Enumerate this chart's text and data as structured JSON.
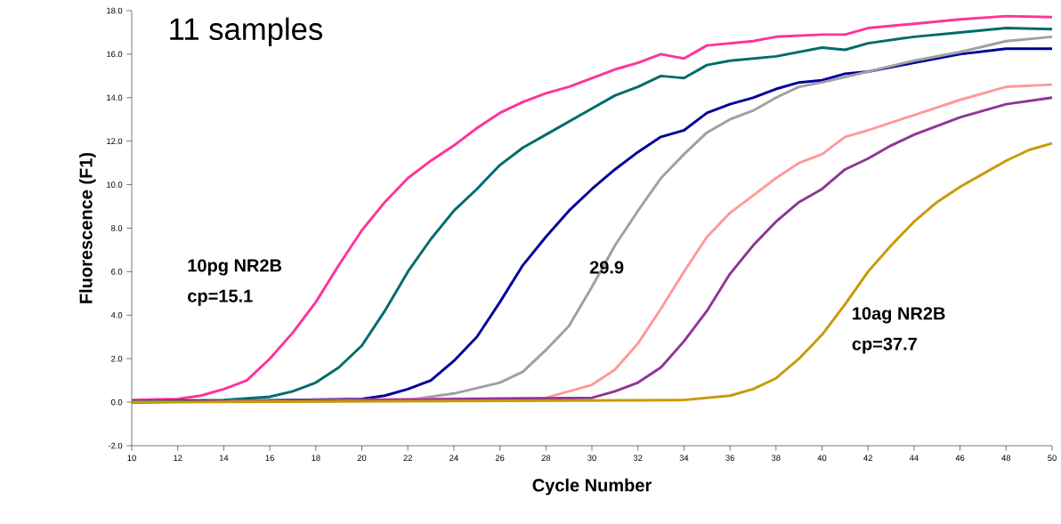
{
  "chart_data": {
    "type": "line",
    "title": "11 samples",
    "xlabel": "Cycle Number",
    "ylabel": "Fluorescence (F1)",
    "xlim": [
      10,
      50
    ],
    "ylim": [
      -2,
      18
    ],
    "xticks": [
      10,
      12,
      14,
      16,
      18,
      20,
      22,
      24,
      26,
      28,
      30,
      32,
      34,
      36,
      38,
      40,
      42,
      44,
      46,
      48,
      50
    ],
    "yticks": [
      {
        "value": -2,
        "label": "-2.0"
      },
      {
        "value": 0,
        "label": "0.0"
      },
      {
        "value": 2,
        "label": "2.0"
      },
      {
        "value": 4,
        "label": "4.0"
      },
      {
        "value": 6,
        "label": "6.0"
      },
      {
        "value": 8,
        "label": "8.0"
      },
      {
        "value": 10,
        "label": "10.0"
      },
      {
        "value": 12,
        "label": "12.0"
      },
      {
        "value": 14,
        "label": "14.0"
      },
      {
        "value": 16,
        "label": "16.0"
      },
      {
        "value": 18,
        "label": "18.0"
      }
    ],
    "marker": "none",
    "line_style": "solid",
    "annotations": [
      "10pg NR2B",
      "cp=15.1",
      "29.9",
      "10ag NR2B",
      "cp=37.7"
    ],
    "series": [
      {
        "color": "#ff3399",
        "x": [
          10,
          12,
          13,
          14,
          15,
          16,
          17,
          18,
          19,
          20,
          21,
          22,
          23,
          24,
          25,
          26,
          27,
          28,
          29,
          30,
          31,
          32,
          33,
          34,
          35,
          36,
          37,
          38,
          40,
          41,
          42,
          44,
          46,
          48,
          50
        ],
        "values": [
          0.1,
          0.15,
          0.3,
          0.6,
          1.0,
          2.0,
          3.2,
          4.6,
          6.3,
          7.9,
          9.2,
          10.3,
          11.1,
          11.8,
          12.6,
          13.3,
          13.8,
          14.2,
          14.5,
          14.9,
          15.3,
          15.6,
          16.0,
          15.8,
          16.4,
          16.5,
          16.6,
          16.8,
          16.9,
          16.9,
          17.2,
          17.4,
          17.6,
          17.75,
          17.7
        ]
      },
      {
        "color": "#006b6b",
        "x": [
          10,
          14,
          16,
          17,
          18,
          19,
          20,
          21,
          22,
          23,
          24,
          25,
          26,
          27,
          28,
          29,
          30,
          31,
          32,
          33,
          34,
          35,
          36,
          38,
          40,
          41,
          42,
          44,
          46,
          48,
          50
        ],
        "values": [
          0.05,
          0.1,
          0.25,
          0.5,
          0.9,
          1.6,
          2.6,
          4.2,
          6.0,
          7.5,
          8.8,
          9.8,
          10.9,
          11.7,
          12.3,
          12.9,
          13.5,
          14.1,
          14.5,
          15.0,
          14.9,
          15.5,
          15.7,
          15.9,
          16.3,
          16.2,
          16.5,
          16.8,
          17.0,
          17.2,
          17.15
        ]
      },
      {
        "color": "#000099",
        "x": [
          10,
          20,
          21,
          22,
          23,
          24,
          25,
          26,
          27,
          28,
          29,
          30,
          31,
          32,
          33,
          34,
          35,
          36,
          37,
          38,
          39,
          40,
          41,
          42,
          44,
          46,
          48,
          50
        ],
        "values": [
          0,
          0.15,
          0.3,
          0.6,
          1.0,
          1.9,
          3.0,
          4.6,
          6.3,
          7.6,
          8.8,
          9.8,
          10.7,
          11.5,
          12.2,
          12.5,
          13.3,
          13.7,
          14.0,
          14.4,
          14.7,
          14.8,
          15.1,
          15.2,
          15.6,
          16.0,
          16.25,
          16.25
        ]
      },
      {
        "color": "#a0a0a0",
        "x": [
          10,
          22,
          24,
          26,
          27,
          28,
          29,
          30,
          31,
          32,
          33,
          34,
          35,
          36,
          37,
          38,
          39,
          40,
          42,
          44,
          46,
          48,
          50
        ],
        "values": [
          0,
          0.1,
          0.4,
          0.9,
          1.4,
          2.4,
          3.5,
          5.3,
          7.2,
          8.8,
          10.3,
          11.4,
          12.4,
          13.0,
          13.4,
          14.0,
          14.5,
          14.7,
          15.2,
          15.7,
          16.1,
          16.6,
          16.8
        ]
      },
      {
        "color": "#ff9999",
        "x": [
          10,
          28,
          30,
          31,
          32,
          33,
          34,
          35,
          36,
          37,
          38,
          39,
          40,
          41,
          42,
          44,
          46,
          48,
          50
        ],
        "values": [
          0,
          0.2,
          0.8,
          1.5,
          2.7,
          4.3,
          6.0,
          7.6,
          8.7,
          9.5,
          10.3,
          11.0,
          11.4,
          12.2,
          12.5,
          13.2,
          13.9,
          14.5,
          14.6
        ]
      },
      {
        "color": "#8e3596",
        "x": [
          10,
          30,
          31,
          32,
          33,
          34,
          35,
          36,
          37,
          38,
          39,
          40,
          41,
          42,
          43,
          44,
          46,
          48,
          50
        ],
        "values": [
          0,
          0.2,
          0.5,
          0.9,
          1.6,
          2.8,
          4.2,
          5.9,
          7.2,
          8.3,
          9.2,
          9.8,
          10.7,
          11.2,
          11.8,
          12.3,
          13.1,
          13.7,
          14.0
        ]
      },
      {
        "color": "#c99a06",
        "x": [
          10,
          34,
          36,
          37,
          38,
          39,
          40,
          41,
          42,
          43,
          44,
          45,
          46,
          47,
          48,
          49,
          50
        ],
        "values": [
          0,
          0.1,
          0.3,
          0.6,
          1.1,
          2.0,
          3.1,
          4.5,
          6.0,
          7.2,
          8.3,
          9.2,
          9.9,
          10.5,
          11.1,
          11.6,
          11.9
        ]
      }
    ]
  }
}
